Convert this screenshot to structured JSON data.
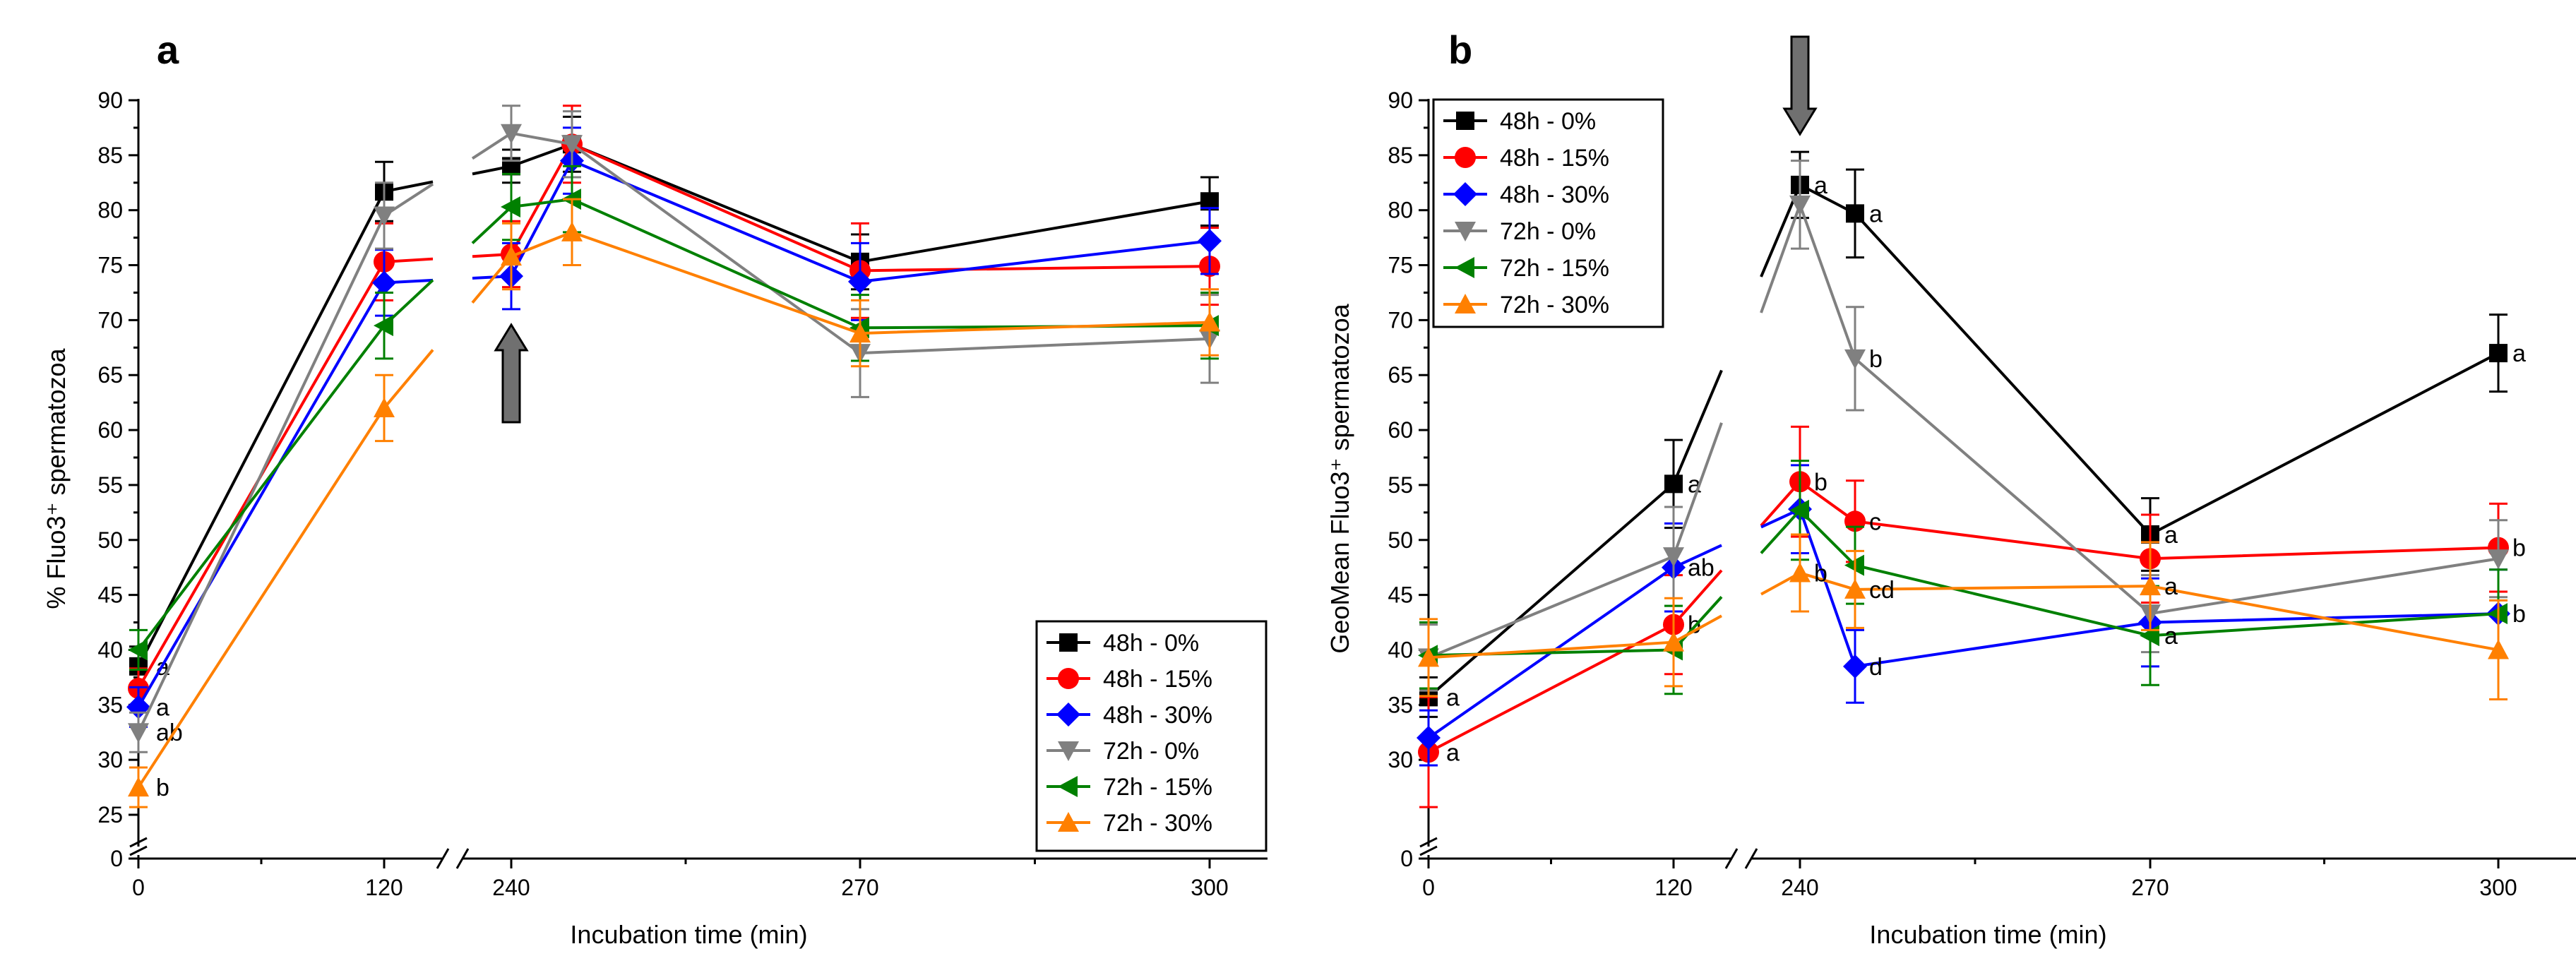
{
  "chart_data": [
    {
      "panel_label": "a",
      "type": "line",
      "x_ticks": [
        "0",
        "120",
        "240",
        "270",
        "300"
      ],
      "x_break_between": [
        "120",
        "240"
      ],
      "xlabel": "Incubation time (min)",
      "ylabel": "% Fluo3⁺ spermatozoa",
      "ylim": [
        25,
        90
      ],
      "y_ticks": [
        "0",
        "25",
        "30",
        "35",
        "40",
        "45",
        "50",
        "55",
        "60",
        "65",
        "70",
        "75",
        "80",
        "85",
        "90"
      ],
      "y_break": true,
      "legend_location": "bottom-right",
      "annotation": "arrow at 240 min",
      "series": [
        {
          "name": "48h - 0%",
          "color": "#000000",
          "marker": "square",
          "points": [
            {
              "x": 0,
              "y": 38.5
            },
            {
              "x": 120,
              "y": 81.7
            },
            {
              "x": 240,
              "y": 84.0
            },
            {
              "x": 255,
              "y": 86.0
            },
            {
              "x": 270,
              "y": 75.3
            },
            {
              "x": 300,
              "y": 80.8
            }
          ],
          "errors": [
            1.8,
            2.7,
            1.5,
            2.5,
            2.5,
            2.2
          ],
          "letters": [
            "a",
            "",
            "",
            "",
            "",
            ""
          ]
        },
        {
          "name": "48h - 15%",
          "color": "#ff0000",
          "marker": "circle",
          "points": [
            {
              "x": 0,
              "y": 36.5
            },
            {
              "x": 120,
              "y": 75.3
            },
            {
              "x": 240,
              "y": 76.0
            },
            {
              "x": 255,
              "y": 86.0
            },
            {
              "x": 270,
              "y": 74.5
            },
            {
              "x": 300,
              "y": 74.9
            }
          ],
          "errors": [
            1.8,
            3.5,
            3.0,
            3.5,
            4.3,
            3.5
          ],
          "letters": [
            "",
            "",
            "",
            "",
            "",
            ""
          ]
        },
        {
          "name": "48h - 30%",
          "color": "#0000ff",
          "marker": "diamond",
          "points": [
            {
              "x": 0,
              "y": 34.8
            },
            {
              "x": 120,
              "y": 73.4
            },
            {
              "x": 240,
              "y": 74.0
            },
            {
              "x": 255,
              "y": 84.5
            },
            {
              "x": 270,
              "y": 73.5
            },
            {
              "x": 300,
              "y": 77.2
            }
          ],
          "errors": [
            1.8,
            3.0,
            3.0,
            3.0,
            3.5,
            3.0
          ],
          "letters": [
            "a",
            "",
            "",
            "",
            "",
            ""
          ]
        },
        {
          "name": "72h - 0%",
          "color": "#808080",
          "marker": "triangle-down",
          "points": [
            {
              "x": 0,
              "y": 32.5
            },
            {
              "x": 120,
              "y": 79.5
            },
            {
              "x": 240,
              "y": 87.0
            },
            {
              "x": 255,
              "y": 86.0
            },
            {
              "x": 270,
              "y": 67.0
            },
            {
              "x": 300,
              "y": 68.3
            }
          ],
          "errors": [
            1.8,
            3.0,
            2.5,
            3.0,
            4.0,
            4.0
          ],
          "letters": [
            "ab",
            "",
            "",
            "",
            "",
            ""
          ]
        },
        {
          "name": "72h - 15%",
          "color": "#008000",
          "marker": "triangle-left",
          "points": [
            {
              "x": 0,
              "y": 40.0
            },
            {
              "x": 120,
              "y": 69.5
            },
            {
              "x": 240,
              "y": 80.3
            },
            {
              "x": 255,
              "y": 81.0
            },
            {
              "x": 270,
              "y": 69.3
            },
            {
              "x": 300,
              "y": 69.5
            }
          ],
          "errors": [
            1.8,
            3.0,
            3.0,
            3.0,
            3.0,
            3.0
          ],
          "letters": [
            "",
            "",
            "",
            "",
            "",
            ""
          ]
        },
        {
          "name": "72h - 30%",
          "color": "#ff8000",
          "marker": "triangle-up",
          "points": [
            {
              "x": 0,
              "y": 27.5
            },
            {
              "x": 120,
              "y": 62.0
            },
            {
              "x": 240,
              "y": 75.8
            },
            {
              "x": 255,
              "y": 78.0
            },
            {
              "x": 270,
              "y": 68.8
            },
            {
              "x": 300,
              "y": 69.8
            }
          ],
          "errors": [
            1.8,
            3.0,
            3.0,
            3.0,
            3.0,
            3.0
          ],
          "letters": [
            "b",
            "",
            "",
            "",
            "",
            ""
          ]
        }
      ]
    },
    {
      "panel_label": "b",
      "type": "line",
      "x_ticks": [
        "0",
        "120",
        "240",
        "270",
        "300"
      ],
      "x_break_between": [
        "120",
        "240"
      ],
      "xlabel": "Incubation time (min)",
      "ylabel": "GeoMean Fluo3⁺ spermatozoa",
      "ylim": [
        25,
        90
      ],
      "y_ticks": [
        "0",
        "30",
        "35",
        "40",
        "45",
        "50",
        "55",
        "60",
        "65",
        "70",
        "75",
        "80",
        "85",
        "90"
      ],
      "y_break": true,
      "legend_location": "top-left",
      "annotation": "arrow at 240 min",
      "series": [
        {
          "name": "48h - 0%",
          "color": "#000000",
          "marker": "square",
          "points": [
            {
              "x": 0,
              "y": 35.7
            },
            {
              "x": 120,
              "y": 55.1
            },
            {
              "x": 240,
              "y": 82.3
            },
            {
              "x": 255,
              "y": 79.7
            },
            {
              "x": 270,
              "y": 50.5
            },
            {
              "x": 300,
              "y": 67.0
            }
          ],
          "errors": [
            1.8,
            4.0,
            3.0,
            4.0,
            3.3,
            3.5
          ],
          "letters": [
            "a",
            "a",
            "a",
            "a",
            "a",
            "a"
          ]
        },
        {
          "name": "48h - 15%",
          "color": "#ff0000",
          "marker": "circle",
          "points": [
            {
              "x": 0,
              "y": 30.7
            },
            {
              "x": 120,
              "y": 42.3
            },
            {
              "x": 240,
              "y": 55.3
            },
            {
              "x": 255,
              "y": 51.7
            },
            {
              "x": 270,
              "y": 48.3
            },
            {
              "x": 300,
              "y": 49.3
            }
          ],
          "errors": [
            5.0,
            4.5,
            5.0,
            3.7,
            4.0,
            4.0
          ],
          "letters": [
            "a",
            "b",
            "b",
            "c",
            "",
            "b"
          ]
        },
        {
          "name": "48h - 30%",
          "color": "#0000ff",
          "marker": "diamond",
          "points": [
            {
              "x": 0,
              "y": 32.0
            },
            {
              "x": 120,
              "y": 47.5
            },
            {
              "x": 240,
              "y": 52.8
            },
            {
              "x": 255,
              "y": 38.5
            },
            {
              "x": 270,
              "y": 42.5
            },
            {
              "x": 300,
              "y": 43.3
            }
          ],
          "errors": [
            2.5,
            4.0,
            4.0,
            3.3,
            4.0,
            4.0
          ],
          "letters": [
            "",
            "ab",
            "",
            "d",
            "",
            "b"
          ]
        },
        {
          "name": "72h - 0%",
          "color": "#808080",
          "marker": "triangle-down",
          "points": [
            {
              "x": 0,
              "y": 39.3
            },
            {
              "x": 120,
              "y": 48.5
            },
            {
              "x": 240,
              "y": 80.5
            },
            {
              "x": 255,
              "y": 66.5
            },
            {
              "x": 270,
              "y": 43.3
            },
            {
              "x": 300,
              "y": 48.3
            }
          ],
          "errors": [
            3.0,
            4.5,
            4.0,
            4.7,
            3.5,
            3.5
          ],
          "letters": [
            "",
            "",
            "",
            "b",
            "",
            ""
          ]
        },
        {
          "name": "72h - 15%",
          "color": "#008000",
          "marker": "triangle-left",
          "points": [
            {
              "x": 0,
              "y": 39.5
            },
            {
              "x": 120,
              "y": 40.0
            },
            {
              "x": 240,
              "y": 52.7
            },
            {
              "x": 255,
              "y": 47.7
            },
            {
              "x": 270,
              "y": 41.3
            },
            {
              "x": 300,
              "y": 43.3
            }
          ],
          "errors": [
            3.0,
            4.0,
            4.5,
            3.5,
            4.5,
            4.0
          ],
          "letters": [
            "",
            "",
            "",
            "",
            "a",
            ""
          ]
        },
        {
          "name": "72h - 30%",
          "color": "#ff8000",
          "marker": "triangle-up",
          "points": [
            {
              "x": 0,
              "y": 39.3
            },
            {
              "x": 120,
              "y": 40.7
            },
            {
              "x": 240,
              "y": 47.0
            },
            {
              "x": 255,
              "y": 45.5
            },
            {
              "x": 270,
              "y": 45.8
            },
            {
              "x": 300,
              "y": 40.0
            }
          ],
          "errors": [
            3.5,
            4.0,
            3.5,
            3.5,
            4.0,
            4.5
          ],
          "letters": [
            "",
            "",
            "b",
            "cd",
            "a",
            ""
          ]
        }
      ]
    }
  ]
}
